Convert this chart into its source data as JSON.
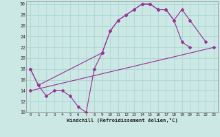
{
  "bg_color": "#cce8e4",
  "line_color": "#993399",
  "grid_color": "#aad8d4",
  "xlabel": "Windchill (Refroidissement éolien,°C)",
  "xlim": [
    -0.5,
    23.5
  ],
  "ylim": [
    10,
    30.5
  ],
  "xticks": [
    0,
    1,
    2,
    3,
    4,
    5,
    6,
    7,
    8,
    9,
    10,
    11,
    12,
    13,
    14,
    15,
    16,
    17,
    18,
    19,
    20,
    21,
    22,
    23
  ],
  "yticks": [
    10,
    12,
    14,
    16,
    18,
    20,
    22,
    24,
    26,
    28,
    30
  ],
  "line1_x": [
    0,
    1,
    2,
    3,
    4,
    5,
    6,
    7,
    8,
    9,
    10,
    11,
    12,
    13,
    14,
    15,
    16,
    17,
    18,
    19,
    20
  ],
  "line1_y": [
    18,
    15,
    13,
    14,
    14,
    13,
    11,
    10,
    18,
    21,
    25,
    27,
    28,
    29,
    30,
    30,
    29,
    29,
    27,
    23,
    22
  ],
  "line2_x": [
    0,
    23
  ],
  "line2_y": [
    14,
    22
  ],
  "line3_x": [
    0,
    1,
    9,
    10,
    11,
    12,
    13,
    14,
    15,
    16,
    17,
    18,
    19,
    20,
    22
  ],
  "line3_y": [
    18,
    15,
    21,
    25,
    27,
    28,
    29,
    30,
    30,
    29,
    29,
    27,
    29,
    27,
    23
  ]
}
